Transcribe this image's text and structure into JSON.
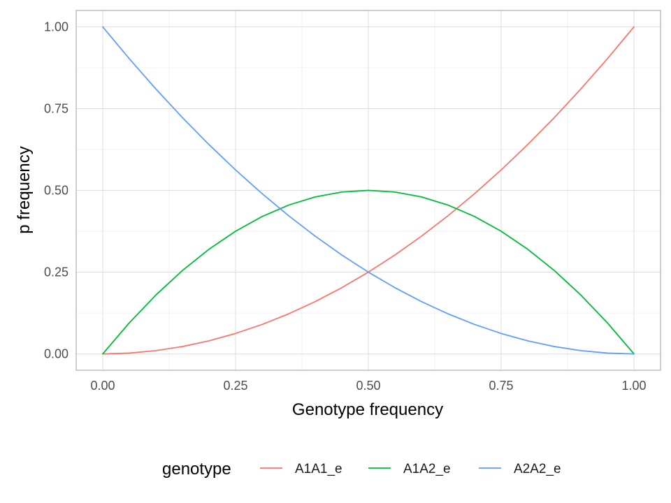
{
  "chart_data": {
    "type": "line",
    "xlabel": "Genotype frequency",
    "ylabel": "p frequency",
    "xlim": [
      -0.05,
      1.05
    ],
    "ylim": [
      -0.05,
      1.05
    ],
    "x_ticks": [
      "0.00",
      "0.25",
      "0.50",
      "0.75",
      "1.00"
    ],
    "y_ticks": [
      "0.00",
      "0.25",
      "0.50",
      "0.75",
      "1.00"
    ],
    "x_tick_values": [
      0,
      0.25,
      0.5,
      0.75,
      1
    ],
    "y_tick_values": [
      0,
      0.25,
      0.5,
      0.75,
      1
    ],
    "grid": true,
    "legend": {
      "title": "genotype",
      "position": "bottom"
    },
    "x": [
      0,
      0.05,
      0.1,
      0.15,
      0.2,
      0.25,
      0.3,
      0.35,
      0.4,
      0.45,
      0.5,
      0.55,
      0.6,
      0.65,
      0.7,
      0.75,
      0.8,
      0.85,
      0.9,
      0.95,
      1
    ],
    "series": [
      {
        "name": "A1A1_e",
        "color": "#F8766D",
        "values": [
          0,
          0.0025,
          0.01,
          0.0225,
          0.04,
          0.0625,
          0.09,
          0.1225,
          0.16,
          0.2025,
          0.25,
          0.3025,
          0.36,
          0.4225,
          0.49,
          0.5625,
          0.64,
          0.7225,
          0.81,
          0.9025,
          1
        ]
      },
      {
        "name": "A1A2_e",
        "color": "#00BA38",
        "values": [
          0,
          0.095,
          0.18,
          0.255,
          0.32,
          0.375,
          0.42,
          0.455,
          0.48,
          0.495,
          0.5,
          0.495,
          0.48,
          0.455,
          0.42,
          0.375,
          0.32,
          0.255,
          0.18,
          0.095,
          0
        ]
      },
      {
        "name": "A2A2_e",
        "color": "#619CFF",
        "values": [
          1,
          0.9025,
          0.81,
          0.7225,
          0.64,
          0.5625,
          0.49,
          0.4225,
          0.36,
          0.3025,
          0.25,
          0.2025,
          0.16,
          0.1225,
          0.09,
          0.0625,
          0.04,
          0.0225,
          0.01,
          0.0025,
          0
        ]
      }
    ]
  }
}
